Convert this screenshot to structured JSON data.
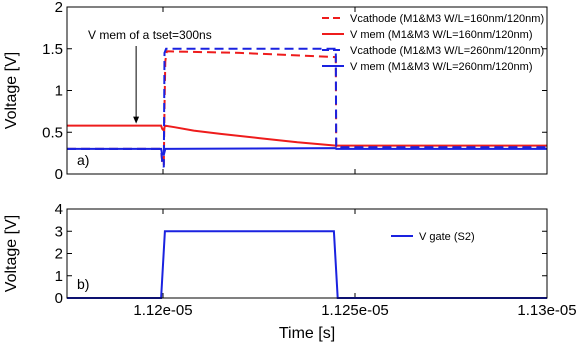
{
  "chart_data": [
    {
      "type": "line",
      "panel_label": "a)",
      "ylabel": "Voltage [V]",
      "xlabel": "",
      "xlim": [
        1.1175e-05,
        1.13e-05
      ],
      "ylim": [
        0,
        2
      ],
      "yticks": [
        0,
        0.5,
        1,
        1.5,
        2
      ],
      "ytick_labels": [
        "0",
        "0.5",
        "1",
        "1.5",
        "2"
      ],
      "legend_position": "top-right",
      "annotation": "V mem of a tset=300ns",
      "annotation_point": [
        1.1193e-05,
        0.58
      ],
      "series": [
        {
          "name": "Vcathode (M1&M3 W/L=160nm/120nm)",
          "color": "#ee1c1c",
          "dash": "dashed",
          "x": [
            1.1175e-05,
            1.11995e-05,
            1.11998e-05,
            1.12002e-05,
            1.12004e-05,
            1.12006e-05,
            1.1201e-05,
            1.122e-05,
            1.1245e-05,
            1.12451e-05,
            1.13e-05
          ],
          "y": [
            0.3,
            0.3,
            0.15,
            0.1,
            0.8,
            1.35,
            1.47,
            1.45,
            1.4,
            0.31,
            0.31
          ]
        },
        {
          "name": "V mem (M1&M3 W/L=160nm/120nm)",
          "color": "#ee1c1c",
          "dash": "solid",
          "x": [
            1.1175e-05,
            1.11995e-05,
            1.11998e-05,
            1.12002e-05,
            1.12005e-05,
            1.1203e-05,
            1.1208e-05,
            1.1215e-05,
            1.1225e-05,
            1.1235e-05,
            1.1245e-05,
            1.1255e-05,
            1.13e-05
          ],
          "y": [
            0.58,
            0.58,
            0.54,
            0.52,
            0.58,
            0.56,
            0.52,
            0.48,
            0.43,
            0.38,
            0.34,
            0.34,
            0.34
          ]
        },
        {
          "name": "Vcathode (M1&M3 W/L=260nm/120nm)",
          "color": "#1a22e0",
          "dash": "dashed",
          "x": [
            1.1175e-05,
            1.11995e-05,
            1.11998e-05,
            1.12002e-05,
            1.12004e-05,
            1.12008e-05,
            1.1245e-05,
            1.12451e-05,
            1.13e-05
          ],
          "y": [
            0.3,
            0.3,
            0.15,
            0.08,
            1.45,
            1.5,
            1.5,
            0.32,
            0.32
          ]
        },
        {
          "name": "V mem (M1&M3 W/L=260nm/120nm)",
          "color": "#1a22e0",
          "dash": "solid",
          "x": [
            1.1175e-05,
            1.11995e-05,
            1.11998e-05,
            1.12002e-05,
            1.12006e-05,
            1.1245e-05,
            1.12451e-05,
            1.13e-05
          ],
          "y": [
            0.3,
            0.3,
            0.24,
            0.23,
            0.3,
            0.31,
            0.3,
            0.3
          ]
        }
      ]
    },
    {
      "type": "line",
      "panel_label": "b)",
      "ylabel": "Voltage [V]",
      "xlabel": "Time [s]",
      "xlim": [
        1.1175e-05,
        1.13e-05
      ],
      "ylim": [
        0,
        4
      ],
      "yticks": [
        0,
        1,
        2,
        3,
        4
      ],
      "ytick_labels": [
        "0",
        "1",
        "2",
        "3",
        "4"
      ],
      "xticks": [
        1.12e-05,
        1.125e-05,
        1.13e-05
      ],
      "xtick_labels": [
        "1.12e-05",
        "1.125e-05",
        "1.13e-05"
      ],
      "legend_position": "top-right",
      "series": [
        {
          "name": "V gate (S2)",
          "color": "#1a22e0",
          "dash": "solid",
          "x": [
            1.1175e-05,
            1.11995e-05,
            1.12005e-05,
            1.12445e-05,
            1.12455e-05,
            1.13e-05
          ],
          "y": [
            0,
            0,
            3,
            3,
            0,
            0
          ]
        }
      ]
    }
  ]
}
